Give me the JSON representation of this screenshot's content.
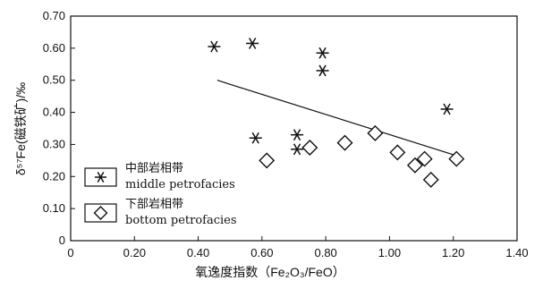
{
  "chart_data": {
    "type": "scatter",
    "title": "",
    "xlabel": "氧逸度指数（Fe₂O₃/FeO）",
    "ylabel": "δ⁵⁷Fe(磁铁矿)/‰",
    "xlim": [
      0,
      1.4
    ],
    "ylim": [
      0,
      0.7
    ],
    "xticks": [
      "0",
      "0.20",
      "0.40",
      "0.60",
      "0.80",
      "1.00",
      "1.20",
      "1.40"
    ],
    "yticks": [
      "0",
      "0.10",
      "0.20",
      "0.30",
      "0.40",
      "0.50",
      "0.60",
      "0.70"
    ],
    "grid": false,
    "legend": {
      "position": "bottom-left",
      "entries": [
        {
          "marker": "asterisk",
          "label_cn": "中部岩相带",
          "label_en": "middle petrofacies"
        },
        {
          "marker": "diamond",
          "label_cn": "下部岩相带",
          "label_en": "bottom petrofacies"
        }
      ]
    },
    "series": [
      {
        "name": "中部岩相带 middle petrofacies",
        "marker": "asterisk",
        "points": [
          {
            "x": 0.45,
            "y": 0.605
          },
          {
            "x": 0.57,
            "y": 0.615
          },
          {
            "x": 0.58,
            "y": 0.32
          },
          {
            "x": 0.71,
            "y": 0.33
          },
          {
            "x": 0.71,
            "y": 0.285
          },
          {
            "x": 0.79,
            "y": 0.585
          },
          {
            "x": 0.79,
            "y": 0.53
          },
          {
            "x": 1.18,
            "y": 0.41
          }
        ]
      },
      {
        "name": "下部岩相带 bottom petrofacies",
        "marker": "diamond",
        "points": [
          {
            "x": 0.615,
            "y": 0.25
          },
          {
            "x": 0.75,
            "y": 0.29
          },
          {
            "x": 0.86,
            "y": 0.305
          },
          {
            "x": 0.955,
            "y": 0.335
          },
          {
            "x": 1.025,
            "y": 0.275
          },
          {
            "x": 1.08,
            "y": 0.235
          },
          {
            "x": 1.11,
            "y": 0.255
          },
          {
            "x": 1.13,
            "y": 0.19
          },
          {
            "x": 1.21,
            "y": 0.255
          }
        ]
      }
    ],
    "trendline": {
      "x1": 0.46,
      "y1": 0.5,
      "x2": 1.21,
      "y2": 0.265
    }
  },
  "colors": {
    "axis": "#111111",
    "marker": "#111111",
    "background": "#ffffff"
  }
}
